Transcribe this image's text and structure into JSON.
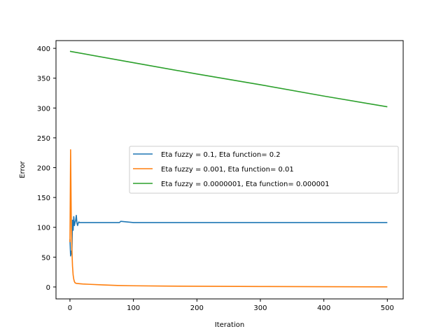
{
  "chart_data": {
    "type": "line",
    "title": "",
    "xlabel": "Iteration",
    "ylabel": "Error",
    "xlim": [
      -22,
      525
    ],
    "ylim": [
      -20,
      413
    ],
    "xticks": [
      0,
      100,
      200,
      300,
      400,
      500
    ],
    "yticks": [
      0,
      50,
      100,
      150,
      200,
      250,
      300,
      350,
      400
    ],
    "grid": false,
    "legend_position": "center-right",
    "series": [
      {
        "name": "Eta fuzzy = 0.1, Eta function= 0.2",
        "color": "#1f77b4",
        "x": [
          0,
          1,
          2,
          3,
          4,
          5,
          6,
          7,
          8,
          9,
          10,
          11,
          12,
          13,
          14,
          15,
          20,
          40,
          60,
          78,
          80,
          100,
          200,
          300,
          400,
          500
        ],
        "y": [
          80,
          52,
          60,
          55,
          112,
          95,
          118,
          103,
          108,
          112,
          120,
          107,
          103,
          107,
          109,
          108,
          108,
          108,
          108,
          108,
          110,
          108,
          108,
          108,
          108,
          108
        ]
      },
      {
        "name": "Eta fuzzy = 0.001, Eta function= 0.01",
        "color": "#ff7f0e",
        "x": [
          0,
          1,
          2,
          3,
          4,
          5,
          6,
          7,
          8,
          10,
          15,
          20,
          30,
          50,
          75,
          100,
          150,
          200,
          300,
          400,
          500
        ],
        "y": [
          75,
          230,
          120,
          65,
          35,
          20,
          13,
          9,
          7,
          6,
          5.5,
          5,
          4.5,
          3.5,
          2.5,
          2,
          1.5,
          1.2,
          0.8,
          0.5,
          0.2
        ]
      },
      {
        "name": "Eta fuzzy = 0.0000001, Eta function= 0.000001",
        "color": "#2ca02c",
        "x": [
          0,
          100,
          200,
          300,
          400,
          500
        ],
        "y": [
          395,
          376,
          357,
          339,
          320,
          302
        ]
      }
    ]
  }
}
